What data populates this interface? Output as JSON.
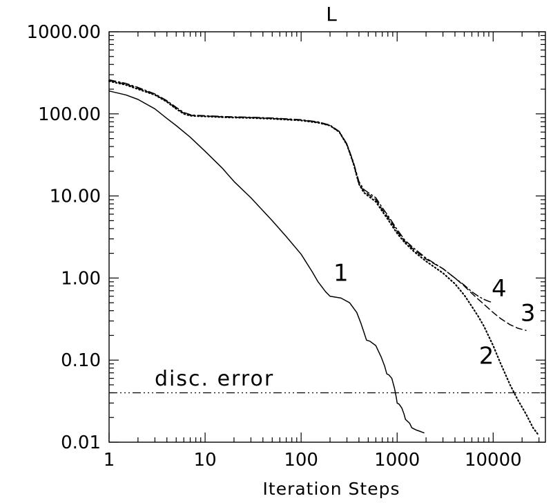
{
  "chart_data": {
    "type": "line",
    "title": "L",
    "xlabel": "Iteration Steps",
    "ylabel": "",
    "xscale": "log",
    "yscale": "log",
    "xlim": [
      1,
      35000
    ],
    "ylim": [
      0.01,
      1000
    ],
    "x_ticks": [
      {
        "value": 1,
        "label": "1"
      },
      {
        "value": 10,
        "label": "10"
      },
      {
        "value": 100,
        "label": "100"
      },
      {
        "value": 1000,
        "label": "1000"
      },
      {
        "value": 10000,
        "label": "10000"
      }
    ],
    "y_ticks": [
      {
        "value": 0.01,
        "label": "0.01"
      },
      {
        "value": 0.1,
        "label": "0.10"
      },
      {
        "value": 1,
        "label": "1.00"
      },
      {
        "value": 10,
        "label": "10.00"
      },
      {
        "value": 100,
        "label": "100.00"
      },
      {
        "value": 1000,
        "label": "1000.00"
      }
    ],
    "grid": false,
    "series": [
      {
        "name": "1",
        "style": "solid",
        "x": [
          1,
          1.5,
          2,
          3,
          4,
          5,
          7,
          10,
          15,
          20,
          30,
          50,
          70,
          100,
          130,
          150,
          180,
          200,
          260,
          320,
          380,
          420,
          450,
          480,
          520,
          600,
          680,
          740,
          780,
          820,
          880,
          940,
          980,
          1000,
          1050,
          1120,
          1180,
          1220,
          1280,
          1350,
          1420,
          1500,
          1600,
          1750,
          1900
        ],
        "y": [
          190,
          170,
          150,
          115,
          88,
          72,
          52,
          35,
          22,
          15,
          9.5,
          5.0,
          3.2,
          1.95,
          1.2,
          0.9,
          0.68,
          0.6,
          0.57,
          0.5,
          0.38,
          0.28,
          0.22,
          0.175,
          0.17,
          0.15,
          0.11,
          0.085,
          0.068,
          0.066,
          0.06,
          0.045,
          0.035,
          0.03,
          0.029,
          0.026,
          0.022,
          0.019,
          0.018,
          0.017,
          0.015,
          0.0145,
          0.014,
          0.0135,
          0.013
        ]
      },
      {
        "name": "2",
        "style": "dotted",
        "x": [
          1,
          1.5,
          2,
          3,
          4,
          5,
          6,
          7,
          8,
          10,
          15,
          20,
          30,
          50,
          100,
          150,
          200,
          250,
          300,
          350,
          400,
          450,
          500,
          600,
          700,
          800,
          900,
          1000,
          1200,
          1500,
          2000,
          3000,
          4000,
          5000,
          6000,
          7000,
          8000,
          10000,
          12000,
          15000,
          18000,
          22000,
          26000,
          30000
        ],
        "y": [
          250,
          225,
          200,
          170,
          140,
          115,
          100,
          95,
          94,
          93,
          91,
          90,
          89,
          87,
          83,
          78,
          72,
          60,
          42,
          25,
          14,
          11,
          10,
          8.5,
          6.5,
          5.2,
          4.2,
          3.5,
          2.7,
          2.1,
          1.6,
          1.15,
          0.85,
          0.62,
          0.45,
          0.34,
          0.26,
          0.15,
          0.09,
          0.05,
          0.033,
          0.022,
          0.015,
          0.012
        ]
      },
      {
        "name": "3",
        "style": "dashed",
        "x": [
          1,
          1.5,
          2,
          3,
          4,
          5,
          6,
          7,
          8,
          10,
          15,
          20,
          30,
          50,
          100,
          150,
          200,
          250,
          300,
          350,
          400,
          450,
          500,
          600,
          700,
          800,
          900,
          1000,
          1200,
          1500,
          2000,
          3000,
          4000,
          5000,
          6000,
          7000,
          8000,
          10000,
          12000,
          15000,
          18000,
          22000
        ],
        "y": [
          255,
          230,
          205,
          172,
          142,
          117,
          102,
          96,
          95,
          94,
          92,
          91,
          90,
          88,
          84,
          79,
          72,
          60,
          42,
          25,
          14,
          11.5,
          10.5,
          9,
          6.8,
          5.5,
          4.5,
          3.7,
          2.8,
          2.2,
          1.7,
          1.3,
          1.0,
          0.8,
          0.65,
          0.55,
          0.48,
          0.38,
          0.32,
          0.27,
          0.245,
          0.23
        ]
      },
      {
        "name": "4",
        "style": "dashdot",
        "x": [
          1,
          1.5,
          2,
          3,
          4,
          5,
          6,
          7,
          8,
          10,
          15,
          20,
          30,
          50,
          100,
          150,
          200,
          250,
          300,
          350,
          400,
          450,
          500,
          600,
          700,
          800,
          900,
          1000,
          1200,
          1500,
          2000,
          3000,
          4000,
          5000,
          6000,
          7000,
          8000,
          9000,
          10000
        ],
        "y": [
          260,
          235,
          210,
          175,
          145,
          120,
          104,
          98,
          96,
          95,
          93,
          92,
          91,
          89,
          85,
          80,
          73,
          61,
          43,
          26,
          15,
          12,
          11,
          9.5,
          7.2,
          5.8,
          4.7,
          3.9,
          2.9,
          2.3,
          1.75,
          1.3,
          1.0,
          0.82,
          0.68,
          0.6,
          0.55,
          0.52,
          0.5
        ]
      }
    ],
    "hline": {
      "y": 0.04,
      "style": "dash-dot-dot",
      "label": "disc. error"
    },
    "curve_labels": [
      {
        "text": "1",
        "x": 260,
        "y": 0.92
      },
      {
        "text": "2",
        "x": 8500,
        "y": 0.09
      },
      {
        "text": "3",
        "x": 23000,
        "y": 0.3
      },
      {
        "text": "4",
        "x": 11500,
        "y": 0.6
      }
    ]
  }
}
